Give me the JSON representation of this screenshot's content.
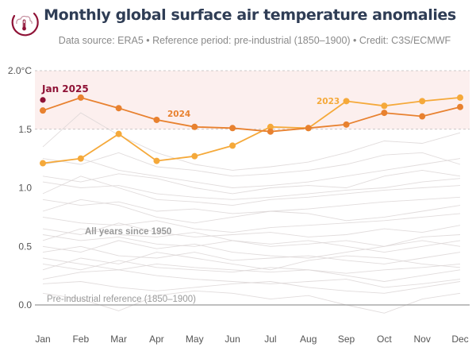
{
  "header": {
    "title": "Monthly global surface air temperature anomalies",
    "subtitle": "Data source: ERA5 • Reference period: pre-industrial (1850–1900) • Credit: C3S/ECMWF",
    "logo_icon": "cloud-thermometer-icon"
  },
  "colors": {
    "series_2024": "#e8812f",
    "series_2023": "#f5a93a",
    "jan_2025": "#8f1236",
    "background_years": "#dcd6d6",
    "band_fill": "#fcefee",
    "title": "#2f3d55",
    "baseline": "#999999"
  },
  "chart_data": {
    "type": "line",
    "title": "Monthly global surface air temperature anomalies",
    "xlabel": "",
    "ylabel": "°C",
    "categories": [
      "Jan",
      "Feb",
      "Mar",
      "Apr",
      "May",
      "Jun",
      "Jul",
      "Aug",
      "Sep",
      "Oct",
      "Nov",
      "Dec"
    ],
    "ylim": [
      0.0,
      2.0
    ],
    "yticks": [
      0.0,
      0.5,
      1.0,
      1.5,
      2.0
    ],
    "ytick_labels": [
      "0.0",
      "0.5",
      "1.0",
      "1.5",
      "2.0°C"
    ],
    "highlight_band": [
      1.5,
      2.0
    ],
    "grid": "dashed lines at 1.5 and 2.0; solid baseline at 0.0",
    "series": [
      {
        "name": "2024",
        "label": "2024",
        "values": [
          1.66,
          1.77,
          1.68,
          1.58,
          1.52,
          1.51,
          1.48,
          1.51,
          1.54,
          1.64,
          1.61,
          1.69
        ]
      },
      {
        "name": "2023",
        "label": "2023",
        "values": [
          1.21,
          1.25,
          1.46,
          1.23,
          1.27,
          1.36,
          1.52,
          1.51,
          1.74,
          1.7,
          1.74,
          1.77
        ]
      }
    ],
    "point": {
      "name": "Jan 2025",
      "label": "Jan 2025",
      "month": "Jan",
      "value": 1.75
    },
    "annotations": {
      "all_years": "All years since 1950",
      "baseline": "Pre-industrial reference (1850–1900)"
    },
    "background_series_description": "All years since 1950 (approx. 73 grey lines, anomalies ~0.0–1.5 °C)",
    "background_series_sample": [
      [
        0.22,
        0.28,
        0.3,
        0.25,
        0.22,
        0.2,
        0.18,
        0.2,
        0.22,
        0.15,
        0.18,
        0.22
      ],
      [
        0.35,
        0.3,
        0.38,
        0.32,
        0.3,
        0.28,
        0.32,
        0.3,
        0.27,
        0.3,
        0.32,
        0.35
      ],
      [
        0.45,
        0.5,
        0.42,
        0.4,
        0.45,
        0.38,
        0.4,
        0.42,
        0.38,
        0.35,
        0.4,
        0.45
      ],
      [
        0.6,
        0.55,
        0.58,
        0.52,
        0.5,
        0.55,
        0.5,
        0.52,
        0.55,
        0.5,
        0.58,
        0.6
      ],
      [
        0.75,
        0.7,
        0.68,
        0.72,
        0.65,
        0.62,
        0.66,
        0.68,
        0.7,
        0.72,
        0.75,
        0.78
      ],
      [
        0.9,
        0.85,
        0.88,
        0.8,
        0.82,
        0.78,
        0.8,
        0.82,
        0.85,
        0.88,
        0.9,
        0.92
      ],
      [
        1.05,
        1.0,
        1.02,
        0.95,
        0.92,
        0.9,
        0.92,
        0.95,
        0.98,
        1.0,
        1.05,
        1.08
      ],
      [
        1.2,
        1.25,
        1.15,
        1.1,
        1.05,
        1.0,
        1.02,
        1.05,
        1.1,
        1.15,
        1.2,
        1.25
      ],
      [
        1.35,
        1.64,
        1.45,
        1.3,
        1.2,
        1.15,
        1.18,
        1.22,
        1.3,
        1.4,
        1.38,
        1.47
      ],
      [
        0.1,
        0.05,
        -0.05,
        0.08,
        0.12,
        0.1,
        0.05,
        0.08,
        0.0,
        -0.07,
        0.05,
        0.1
      ],
      [
        0.3,
        0.4,
        0.35,
        0.45,
        0.4,
        0.35,
        0.3,
        0.38,
        0.42,
        0.4,
        0.35,
        0.32
      ],
      [
        0.5,
        0.45,
        0.55,
        0.48,
        0.52,
        0.45,
        0.42,
        0.4,
        0.45,
        0.5,
        0.55,
        0.5
      ],
      [
        0.8,
        0.9,
        0.85,
        0.75,
        0.7,
        0.75,
        0.8,
        0.78,
        0.72,
        0.75,
        0.8,
        0.85
      ],
      [
        1.1,
        1.05,
        1.12,
        1.08,
        1.0,
        0.95,
        1.0,
        1.02,
        1.0,
        1.1,
        1.15,
        1.1
      ],
      [
        0.65,
        0.6,
        0.7,
        0.62,
        0.58,
        0.6,
        0.62,
        0.58,
        0.6,
        0.65,
        0.62,
        0.68
      ],
      [
        0.18,
        0.2,
        0.15,
        0.12,
        0.15,
        0.18,
        0.2,
        0.15,
        0.12,
        0.1,
        0.15,
        0.2
      ],
      [
        0.4,
        0.35,
        0.3,
        0.35,
        0.32,
        0.3,
        0.28,
        0.3,
        0.25,
        0.2,
        0.25,
        0.3
      ],
      [
        0.95,
        1.1,
        1.0,
        0.9,
        0.88,
        0.85,
        0.9,
        0.92,
        0.95,
        0.98,
        1.0,
        1.02
      ],
      [
        1.25,
        1.2,
        1.3,
        1.18,
        1.15,
        1.1,
        1.12,
        1.15,
        1.2,
        1.28,
        1.3,
        1.2
      ],
      [
        0.55,
        0.65,
        0.6,
        0.58,
        0.62,
        0.55,
        0.52,
        0.55,
        0.5,
        0.45,
        0.5,
        0.55
      ]
    ]
  }
}
